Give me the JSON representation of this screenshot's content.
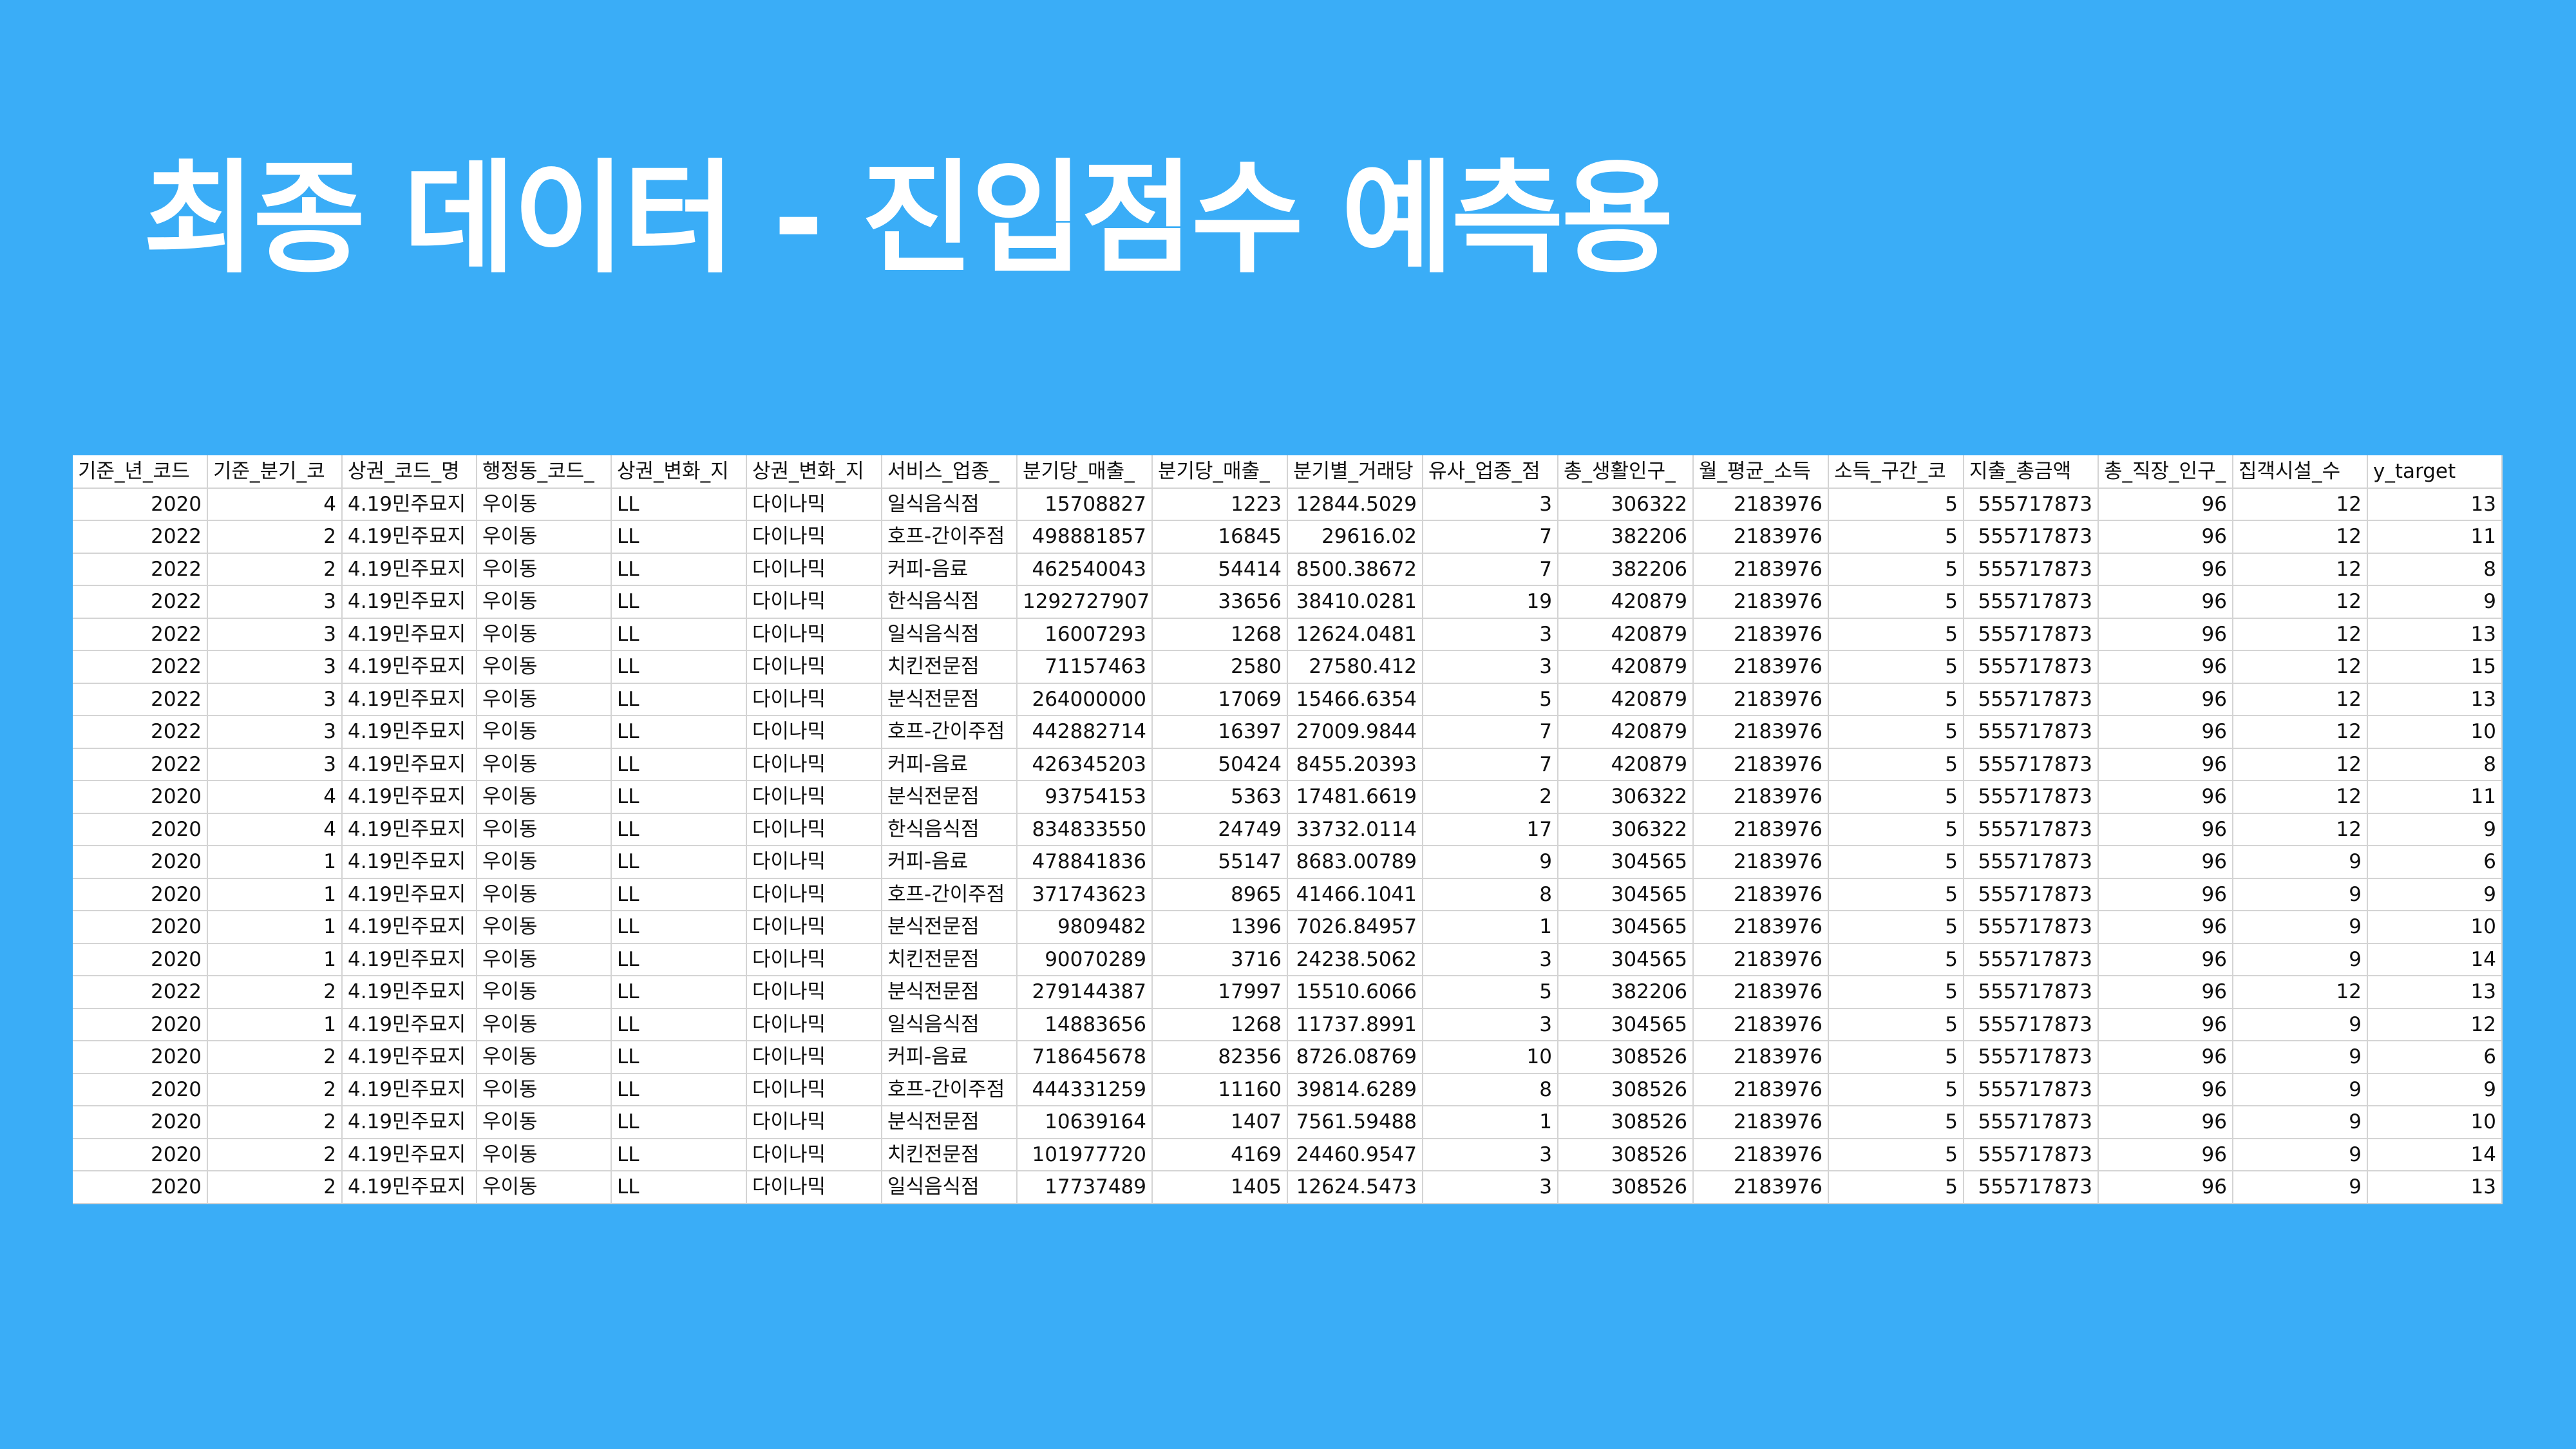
{
  "title": "최종 데이터 - 진입점수 예측용",
  "table": {
    "headers": [
      "기준_년_코드",
      "기준_분기_코",
      "상권_코드_명",
      "행정동_코드_",
      "상권_변화_지",
      "상권_변화_지",
      "서비스_업종_",
      "분기당_매출_",
      "분기당_매출_",
      "분기별_거래당",
      "유사_업종_점",
      "총_생활인구_",
      "월_평균_소득",
      "소득_구간_코",
      "지출_총금액",
      "총_직장_인구_",
      "집객시설_수",
      "y_target"
    ],
    "rows": [
      [
        "2020",
        "4",
        "4.19민주묘지",
        "우이동",
        "LL",
        "다이나믹",
        "일식음식점",
        "15708827",
        "1223",
        "12844.5029",
        "3",
        "306322",
        "2183976",
        "5",
        "555717873",
        "96",
        "12",
        "13"
      ],
      [
        "2022",
        "2",
        "4.19민주묘지",
        "우이동",
        "LL",
        "다이나믹",
        "호프-간이주점",
        "498881857",
        "16845",
        "29616.02",
        "7",
        "382206",
        "2183976",
        "5",
        "555717873",
        "96",
        "12",
        "11"
      ],
      [
        "2022",
        "2",
        "4.19민주묘지",
        "우이동",
        "LL",
        "다이나믹",
        "커피-음료",
        "462540043",
        "54414",
        "8500.38672",
        "7",
        "382206",
        "2183976",
        "5",
        "555717873",
        "96",
        "12",
        "8"
      ],
      [
        "2022",
        "3",
        "4.19민주묘지",
        "우이동",
        "LL",
        "다이나믹",
        "한식음식점",
        "1292727907",
        "33656",
        "38410.0281",
        "19",
        "420879",
        "2183976",
        "5",
        "555717873",
        "96",
        "12",
        "9"
      ],
      [
        "2022",
        "3",
        "4.19민주묘지",
        "우이동",
        "LL",
        "다이나믹",
        "일식음식점",
        "16007293",
        "1268",
        "12624.0481",
        "3",
        "420879",
        "2183976",
        "5",
        "555717873",
        "96",
        "12",
        "13"
      ],
      [
        "2022",
        "3",
        "4.19민주묘지",
        "우이동",
        "LL",
        "다이나믹",
        "치킨전문점",
        "71157463",
        "2580",
        "27580.412",
        "3",
        "420879",
        "2183976",
        "5",
        "555717873",
        "96",
        "12",
        "15"
      ],
      [
        "2022",
        "3",
        "4.19민주묘지",
        "우이동",
        "LL",
        "다이나믹",
        "분식전문점",
        "264000000",
        "17069",
        "15466.6354",
        "5",
        "420879",
        "2183976",
        "5",
        "555717873",
        "96",
        "12",
        "13"
      ],
      [
        "2022",
        "3",
        "4.19민주묘지",
        "우이동",
        "LL",
        "다이나믹",
        "호프-간이주점",
        "442882714",
        "16397",
        "27009.9844",
        "7",
        "420879",
        "2183976",
        "5",
        "555717873",
        "96",
        "12",
        "10"
      ],
      [
        "2022",
        "3",
        "4.19민주묘지",
        "우이동",
        "LL",
        "다이나믹",
        "커피-음료",
        "426345203",
        "50424",
        "8455.20393",
        "7",
        "420879",
        "2183976",
        "5",
        "555717873",
        "96",
        "12",
        "8"
      ],
      [
        "2020",
        "4",
        "4.19민주묘지",
        "우이동",
        "LL",
        "다이나믹",
        "분식전문점",
        "93754153",
        "5363",
        "17481.6619",
        "2",
        "306322",
        "2183976",
        "5",
        "555717873",
        "96",
        "12",
        "11"
      ],
      [
        "2020",
        "4",
        "4.19민주묘지",
        "우이동",
        "LL",
        "다이나믹",
        "한식음식점",
        "834833550",
        "24749",
        "33732.0114",
        "17",
        "306322",
        "2183976",
        "5",
        "555717873",
        "96",
        "12",
        "9"
      ],
      [
        "2020",
        "1",
        "4.19민주묘지",
        "우이동",
        "LL",
        "다이나믹",
        "커피-음료",
        "478841836",
        "55147",
        "8683.00789",
        "9",
        "304565",
        "2183976",
        "5",
        "555717873",
        "96",
        "9",
        "6"
      ],
      [
        "2020",
        "1",
        "4.19민주묘지",
        "우이동",
        "LL",
        "다이나믹",
        "호프-간이주점",
        "371743623",
        "8965",
        "41466.1041",
        "8",
        "304565",
        "2183976",
        "5",
        "555717873",
        "96",
        "9",
        "9"
      ],
      [
        "2020",
        "1",
        "4.19민주묘지",
        "우이동",
        "LL",
        "다이나믹",
        "분식전문점",
        "9809482",
        "1396",
        "7026.84957",
        "1",
        "304565",
        "2183976",
        "5",
        "555717873",
        "96",
        "9",
        "10"
      ],
      [
        "2020",
        "1",
        "4.19민주묘지",
        "우이동",
        "LL",
        "다이나믹",
        "치킨전문점",
        "90070289",
        "3716",
        "24238.5062",
        "3",
        "304565",
        "2183976",
        "5",
        "555717873",
        "96",
        "9",
        "14"
      ],
      [
        "2022",
        "2",
        "4.19민주묘지",
        "우이동",
        "LL",
        "다이나믹",
        "분식전문점",
        "279144387",
        "17997",
        "15510.6066",
        "5",
        "382206",
        "2183976",
        "5",
        "555717873",
        "96",
        "12",
        "13"
      ],
      [
        "2020",
        "1",
        "4.19민주묘지",
        "우이동",
        "LL",
        "다이나믹",
        "일식음식점",
        "14883656",
        "1268",
        "11737.8991",
        "3",
        "304565",
        "2183976",
        "5",
        "555717873",
        "96",
        "9",
        "12"
      ],
      [
        "2020",
        "2",
        "4.19민주묘지",
        "우이동",
        "LL",
        "다이나믹",
        "커피-음료",
        "718645678",
        "82356",
        "8726.08769",
        "10",
        "308526",
        "2183976",
        "5",
        "555717873",
        "96",
        "9",
        "6"
      ],
      [
        "2020",
        "2",
        "4.19민주묘지",
        "우이동",
        "LL",
        "다이나믹",
        "호프-간이주점",
        "444331259",
        "11160",
        "39814.6289",
        "8",
        "308526",
        "2183976",
        "5",
        "555717873",
        "96",
        "9",
        "9"
      ],
      [
        "2020",
        "2",
        "4.19민주묘지",
        "우이동",
        "LL",
        "다이나믹",
        "분식전문점",
        "10639164",
        "1407",
        "7561.59488",
        "1",
        "308526",
        "2183976",
        "5",
        "555717873",
        "96",
        "9",
        "10"
      ],
      [
        "2020",
        "2",
        "4.19민주묘지",
        "우이동",
        "LL",
        "다이나믹",
        "치킨전문점",
        "101977720",
        "4169",
        "24460.9547",
        "3",
        "308526",
        "2183976",
        "5",
        "555717873",
        "96",
        "9",
        "14"
      ],
      [
        "2020",
        "2",
        "4.19민주묘지",
        "우이동",
        "LL",
        "다이나믹",
        "일식음식점",
        "17737489",
        "1405",
        "12624.5473",
        "3",
        "308526",
        "2183976",
        "5",
        "555717873",
        "96",
        "9",
        "13"
      ]
    ]
  }
}
